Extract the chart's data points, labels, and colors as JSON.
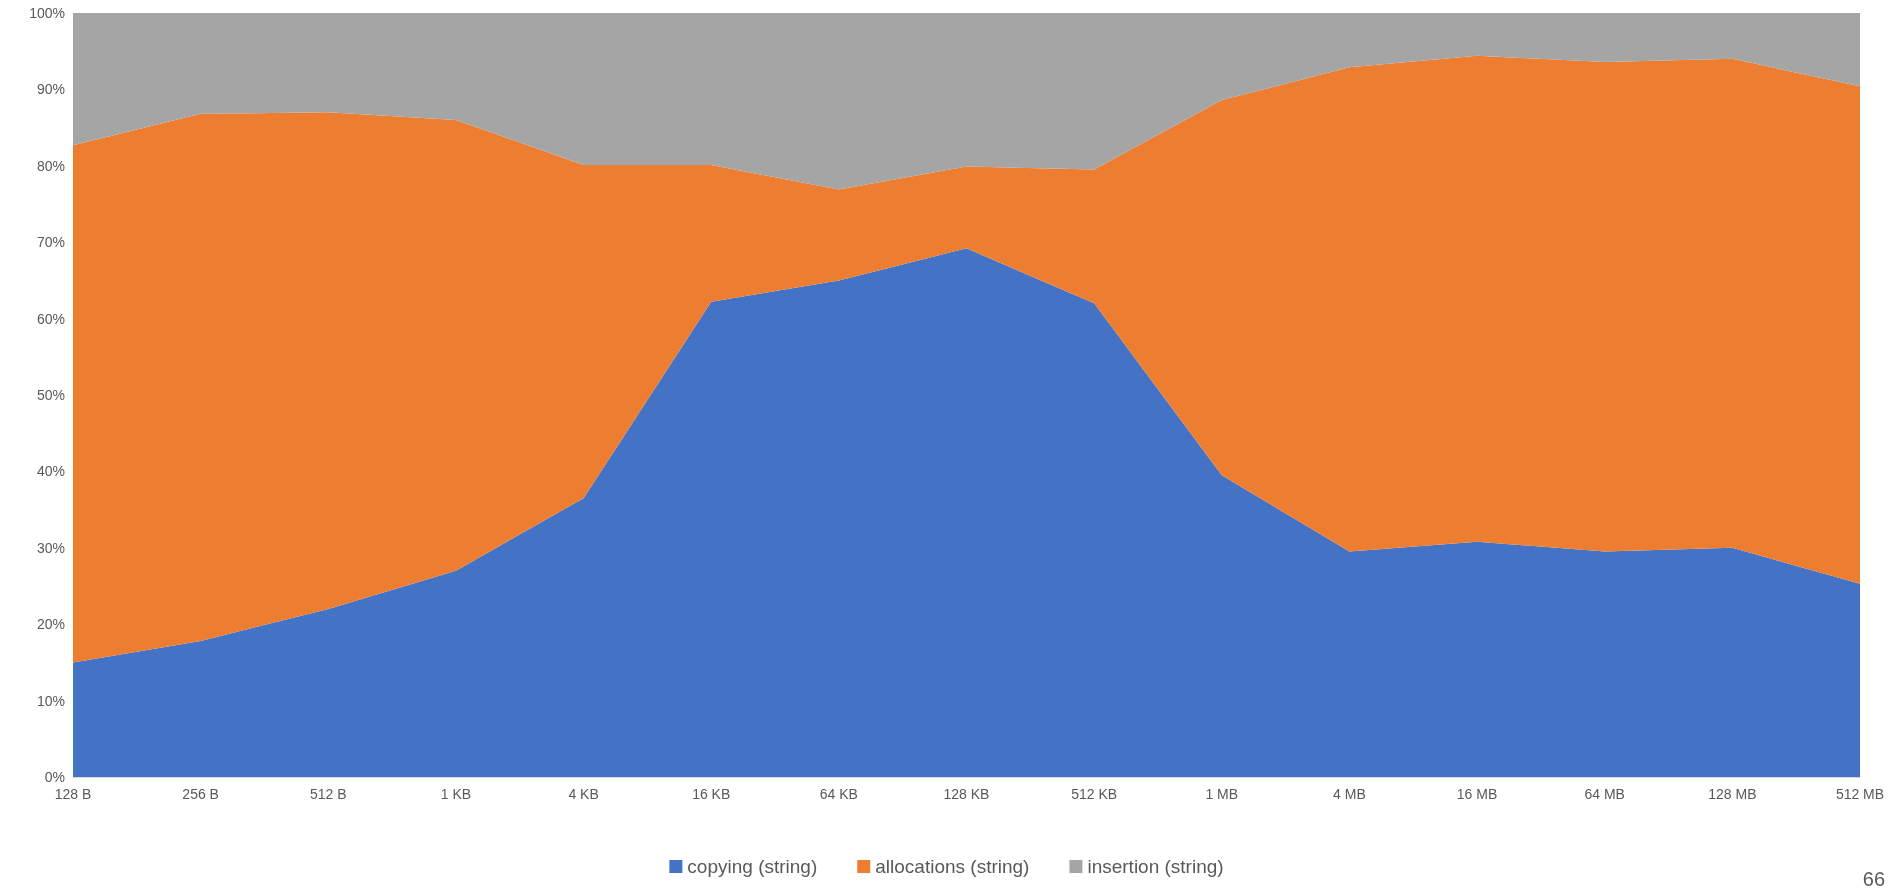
{
  "chart_data": {
    "type": "area",
    "stacked": true,
    "categories": [
      "128 B",
      "256 B",
      "512 B",
      "1 KB",
      "4 KB",
      "16 KB",
      "64 KB",
      "128 KB",
      "512 KB",
      "1 MB",
      "4 MB",
      "16 MB",
      "64 MB",
      "128 MB",
      "512 MB"
    ],
    "series": [
      {
        "name": "copying (string)",
        "color": "#4472c4",
        "values": [
          15.0,
          17.8,
          22.0,
          27.0,
          36.5,
          62.2,
          65.0,
          69.2,
          62.0,
          39.5,
          29.5,
          30.8,
          29.5,
          30.0,
          25.3
        ]
      },
      {
        "name": "allocations (string)",
        "color": "#ed7d31",
        "values": [
          67.7,
          69.0,
          65.0,
          59.0,
          43.6,
          17.9,
          11.9,
          10.7,
          17.5,
          49.1,
          63.4,
          63.6,
          64.1,
          64.0,
          65.1
        ]
      },
      {
        "name": "insertion (string)",
        "color": "#a5a5a5",
        "values": [
          17.3,
          13.2,
          13.0,
          14.0,
          19.9,
          19.9,
          23.1,
          20.1,
          20.5,
          11.4,
          7.1,
          5.6,
          6.4,
          6.0,
          9.6
        ]
      }
    ],
    "ylim": [
      0,
      100
    ],
    "yticks": [
      {
        "value": 0,
        "label": "0%"
      },
      {
        "value": 10,
        "label": "10%"
      },
      {
        "value": 20,
        "label": "20%"
      },
      {
        "value": 30,
        "label": "30%"
      },
      {
        "value": 40,
        "label": "40%"
      },
      {
        "value": 50,
        "label": "50%"
      },
      {
        "value": 60,
        "label": "60%"
      },
      {
        "value": 70,
        "label": "70%"
      },
      {
        "value": 80,
        "label": "80%"
      },
      {
        "value": 90,
        "label": "90%"
      },
      {
        "value": 100,
        "label": "100%"
      }
    ],
    "legend": "bottom",
    "annotations": [
      "66"
    ]
  }
}
